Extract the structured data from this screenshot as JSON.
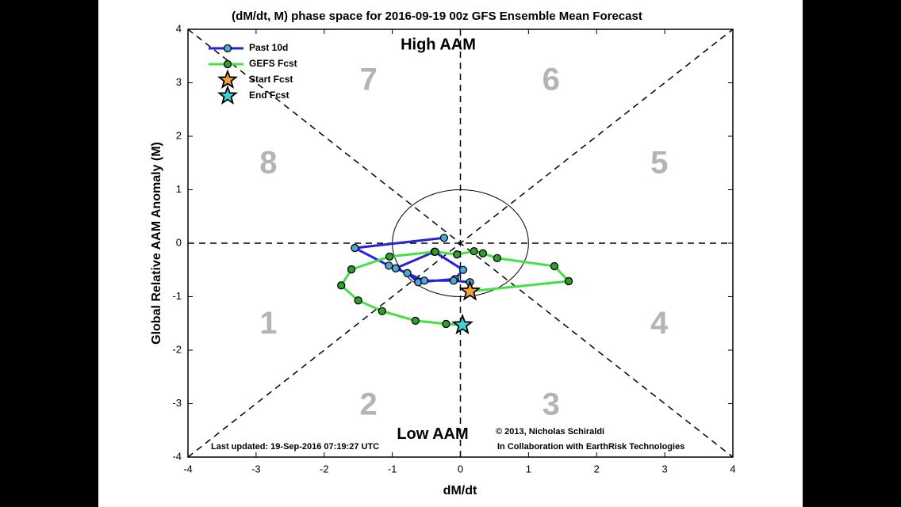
{
  "chart_data": {
    "type": "phase",
    "title": "(dM/dt, M) phase space for 2016-09-19 00z GFS Ensemble Mean Forecast",
    "xlabel": "dM/dt",
    "ylabel": "Global Relative AAM Anomaly (M)",
    "top_label": "High AAM",
    "bottom_label": "Low AAM",
    "phase_labels": [
      "1",
      "2",
      "3",
      "4",
      "5",
      "6",
      "7",
      "8"
    ],
    "footnote_left": "Last updated: 19-Sep-2016 07:19:27 UTC",
    "footnote_right": "© 2013, Nicholas Schiraldi",
    "footnote_right2": "In Collaboration with EarthRisk Technologies",
    "xlim": [
      -4,
      4
    ],
    "ylim": [
      -4,
      4
    ],
    "xticks": [
      -4,
      -3,
      -2,
      -1,
      0,
      1,
      2,
      3,
      4
    ],
    "yticks": [
      -4,
      -3,
      -2,
      -1,
      0,
      1,
      2,
      3,
      4
    ],
    "series": [
      {
        "name": "Past 10d",
        "color": "#2424d6",
        "marker_color": "#4aa8d8",
        "x": [
          -0.24,
          -1.55,
          -1.05,
          -0.78,
          -0.62,
          -0.08,
          0.04,
          -0.38,
          -0.95,
          -0.53,
          -0.1,
          0.14,
          0.14
        ],
        "y": [
          0.1,
          -0.09,
          -0.42,
          -0.56,
          -0.73,
          -0.67,
          -0.5,
          -0.16,
          -0.47,
          -0.7,
          -0.7,
          -0.73,
          -0.9
        ]
      },
      {
        "name": "GEFS Fcst",
        "color": "#44e044",
        "marker_color": "#2f9e2f",
        "x": [
          0.14,
          1.59,
          1.38,
          0.54,
          0.33,
          0.2,
          -0.05,
          -0.37,
          -1.04,
          -1.6,
          -1.75,
          -1.5,
          -1.15,
          -0.66,
          -0.21,
          0.03
        ],
        "y": [
          -0.9,
          -0.71,
          -0.43,
          -0.28,
          -0.19,
          -0.15,
          -0.21,
          -0.16,
          -0.25,
          -0.49,
          -0.79,
          -1.07,
          -1.27,
          -1.45,
          -1.51,
          -1.53
        ]
      }
    ],
    "stars": [
      {
        "name": "Start Fcst",
        "color": "#f7a23a",
        "x": 0.14,
        "y": -0.9
      },
      {
        "name": "End Fcst",
        "color": "#3cd6d6",
        "x": 0.03,
        "y": -1.53
      }
    ]
  }
}
